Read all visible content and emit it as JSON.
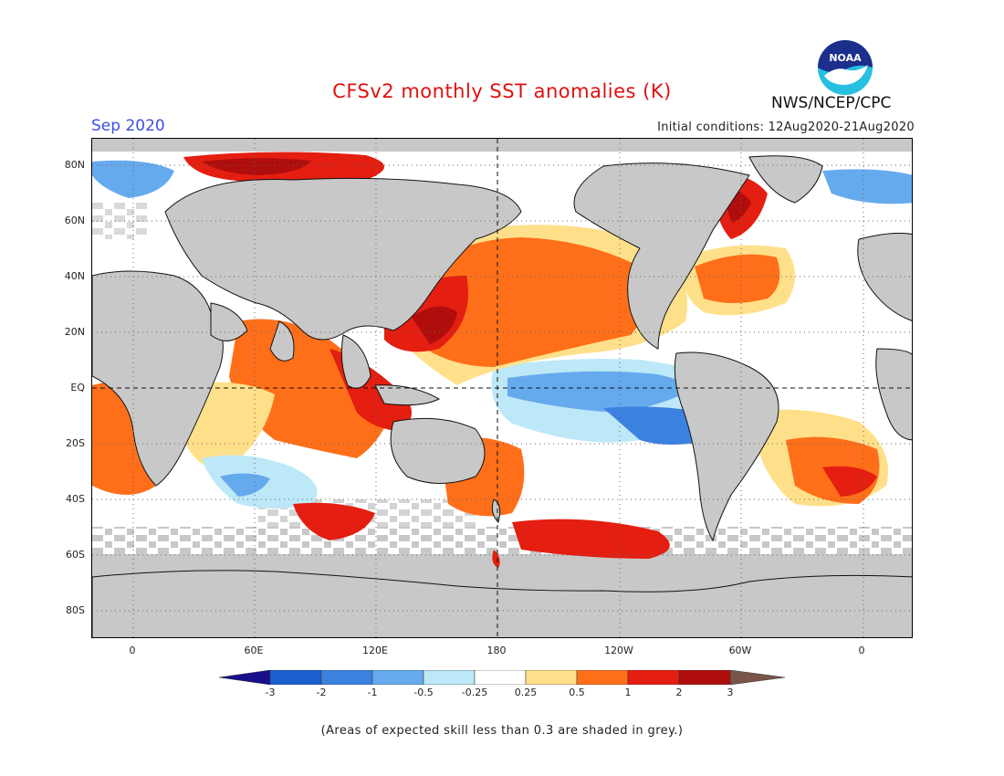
{
  "header": {
    "title": "CFSv2 monthly SST anomalies (K)",
    "month": "Sep 2020",
    "initial_conditions": "Initial conditions: 12Aug2020-21Aug2020",
    "agency": "NWS/NCEP/CPC",
    "logo_text": "NOAA"
  },
  "map": {
    "lat_labels": [
      "80N",
      "60N",
      "40N",
      "20N",
      "EQ",
      "20S",
      "40S",
      "60S",
      "80S"
    ],
    "lon_labels": [
      "0",
      "60E",
      "120E",
      "180",
      "120W",
      "60W",
      "0"
    ]
  },
  "colorbar": {
    "labels": [
      "-3",
      "-2",
      "-1",
      "-0.5",
      "-0.25",
      "0.25",
      "0.5",
      "1",
      "2",
      "3"
    ],
    "colors": [
      "#1a0f8a",
      "#1c5fd0",
      "#3b82e0",
      "#66aaee",
      "#bde8f7",
      "#ffffff",
      "#ffe08a",
      "#ff6f1a",
      "#e41e10",
      "#b00d0d",
      "#7a5448"
    ]
  },
  "footnote": "(Areas of expected skill less than 0.3 are shaded in grey.)",
  "colors": {
    "land": "#c8c8c8",
    "skill_grey": "#c8c8c8",
    "title": "#e01010",
    "month": "#3a4fe0"
  }
}
